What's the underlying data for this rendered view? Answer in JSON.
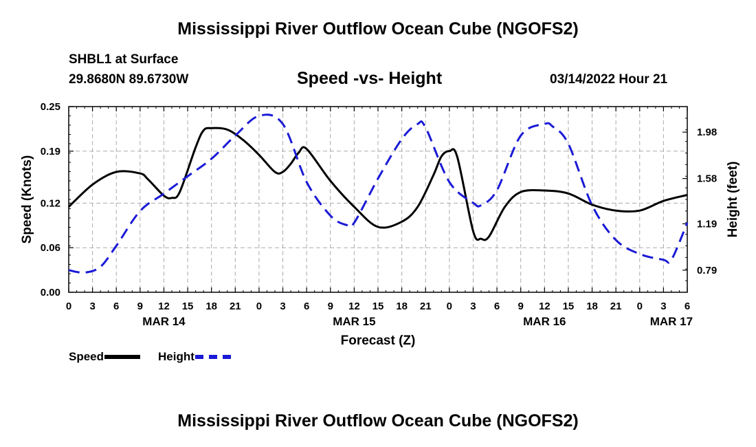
{
  "header": {
    "title": "Mississippi River Outflow Ocean Cube (NGOFS2)",
    "station": "SHBL1 at Surface",
    "coordinates": "29.8680N  89.6730W",
    "subtitle": "Speed -vs- Height",
    "datetime": "03/14/2022 Hour 21"
  },
  "footer": {
    "title": "Mississippi River Outflow Ocean Cube (NGOFS2)"
  },
  "legend": {
    "speed_label": "Speed",
    "height_label": "Height"
  },
  "colors": {
    "speed": "#000000",
    "height": "#1a1ad6",
    "grid": "#aaaaaa"
  },
  "chart_data": {
    "type": "line",
    "title": "Speed -vs- Height",
    "xlabel": "Forecast (Z)",
    "ylabel": "Speed (Knots)",
    "y2label": "Height (feet)",
    "xlim": [
      0,
      78
    ],
    "ylim": [
      0,
      0.25
    ],
    "y2lim": [
      0.6,
      2.2
    ],
    "x_ticks": [
      0,
      3,
      6,
      9,
      12,
      15,
      18,
      21,
      24,
      27,
      30,
      33,
      36,
      39,
      42,
      45,
      48,
      51,
      54,
      57,
      60,
      63,
      66,
      69,
      72,
      75,
      78
    ],
    "x_tick_labels": [
      "0",
      "3",
      "6",
      "9",
      "12",
      "15",
      "18",
      "21",
      "0",
      "3",
      "6",
      "9",
      "12",
      "15",
      "18",
      "21",
      "0",
      "3",
      "6",
      "9",
      "12",
      "15",
      "18",
      "21",
      "0",
      "3",
      "6"
    ],
    "y_ticks": [
      0.0,
      0.06,
      0.12,
      0.19,
      0.25
    ],
    "y_tick_labels": [
      "0.00",
      "0.06",
      "0.12",
      "0.19",
      "0.25"
    ],
    "y2_ticks": [
      0.79,
      1.19,
      1.58,
      1.98
    ],
    "y2_tick_labels": [
      "0.79",
      "1.19",
      "1.58",
      "1.98"
    ],
    "date_labels": [
      {
        "x": 12,
        "label": "MAR 14"
      },
      {
        "x": 36,
        "label": "MAR 15"
      },
      {
        "x": 60,
        "label": "MAR 16"
      },
      {
        "x": 76,
        "label": "MAR 17"
      }
    ],
    "grid": true,
    "series": [
      {
        "name": "Speed",
        "axis": "left",
        "style": "solid",
        "x": [
          0,
          3,
          6,
          9,
          10,
          12,
          13,
          14,
          16,
          17,
          18,
          20,
          22,
          24,
          26,
          27,
          28,
          29,
          30,
          33,
          36,
          39,
          42,
          44,
          46,
          47,
          48,
          49,
          51,
          52,
          53,
          55,
          57,
          60,
          63,
          66,
          69,
          72,
          75,
          78
        ],
        "y": [
          0.115,
          0.145,
          0.162,
          0.16,
          0.152,
          0.13,
          0.127,
          0.135,
          0.195,
          0.218,
          0.221,
          0.219,
          0.205,
          0.185,
          0.162,
          0.162,
          0.173,
          0.188,
          0.193,
          0.15,
          0.115,
          0.088,
          0.095,
          0.115,
          0.158,
          0.183,
          0.19,
          0.182,
          0.082,
          0.072,
          0.075,
          0.115,
          0.135,
          0.137,
          0.133,
          0.118,
          0.11,
          0.11,
          0.123,
          0.131
        ]
      },
      {
        "name": "Height",
        "axis": "right",
        "style": "dashed",
        "x": [
          0,
          2,
          4,
          6,
          9,
          12,
          15,
          18,
          21,
          24,
          27,
          30,
          33,
          35,
          36,
          39,
          42,
          44,
          45,
          48,
          51,
          52,
          54,
          57,
          60,
          61,
          63,
          66,
          69,
          72,
          75,
          76,
          78
        ],
        "y": [
          0.79,
          0.77,
          0.82,
          1.0,
          1.3,
          1.45,
          1.6,
          1.75,
          1.95,
          2.12,
          2.05,
          1.55,
          1.26,
          1.18,
          1.2,
          1.58,
          1.92,
          2.05,
          2.02,
          1.55,
          1.37,
          1.35,
          1.48,
          1.95,
          2.05,
          2.03,
          1.88,
          1.35,
          1.05,
          0.93,
          0.88,
          0.88,
          1.2
        ]
      }
    ]
  }
}
